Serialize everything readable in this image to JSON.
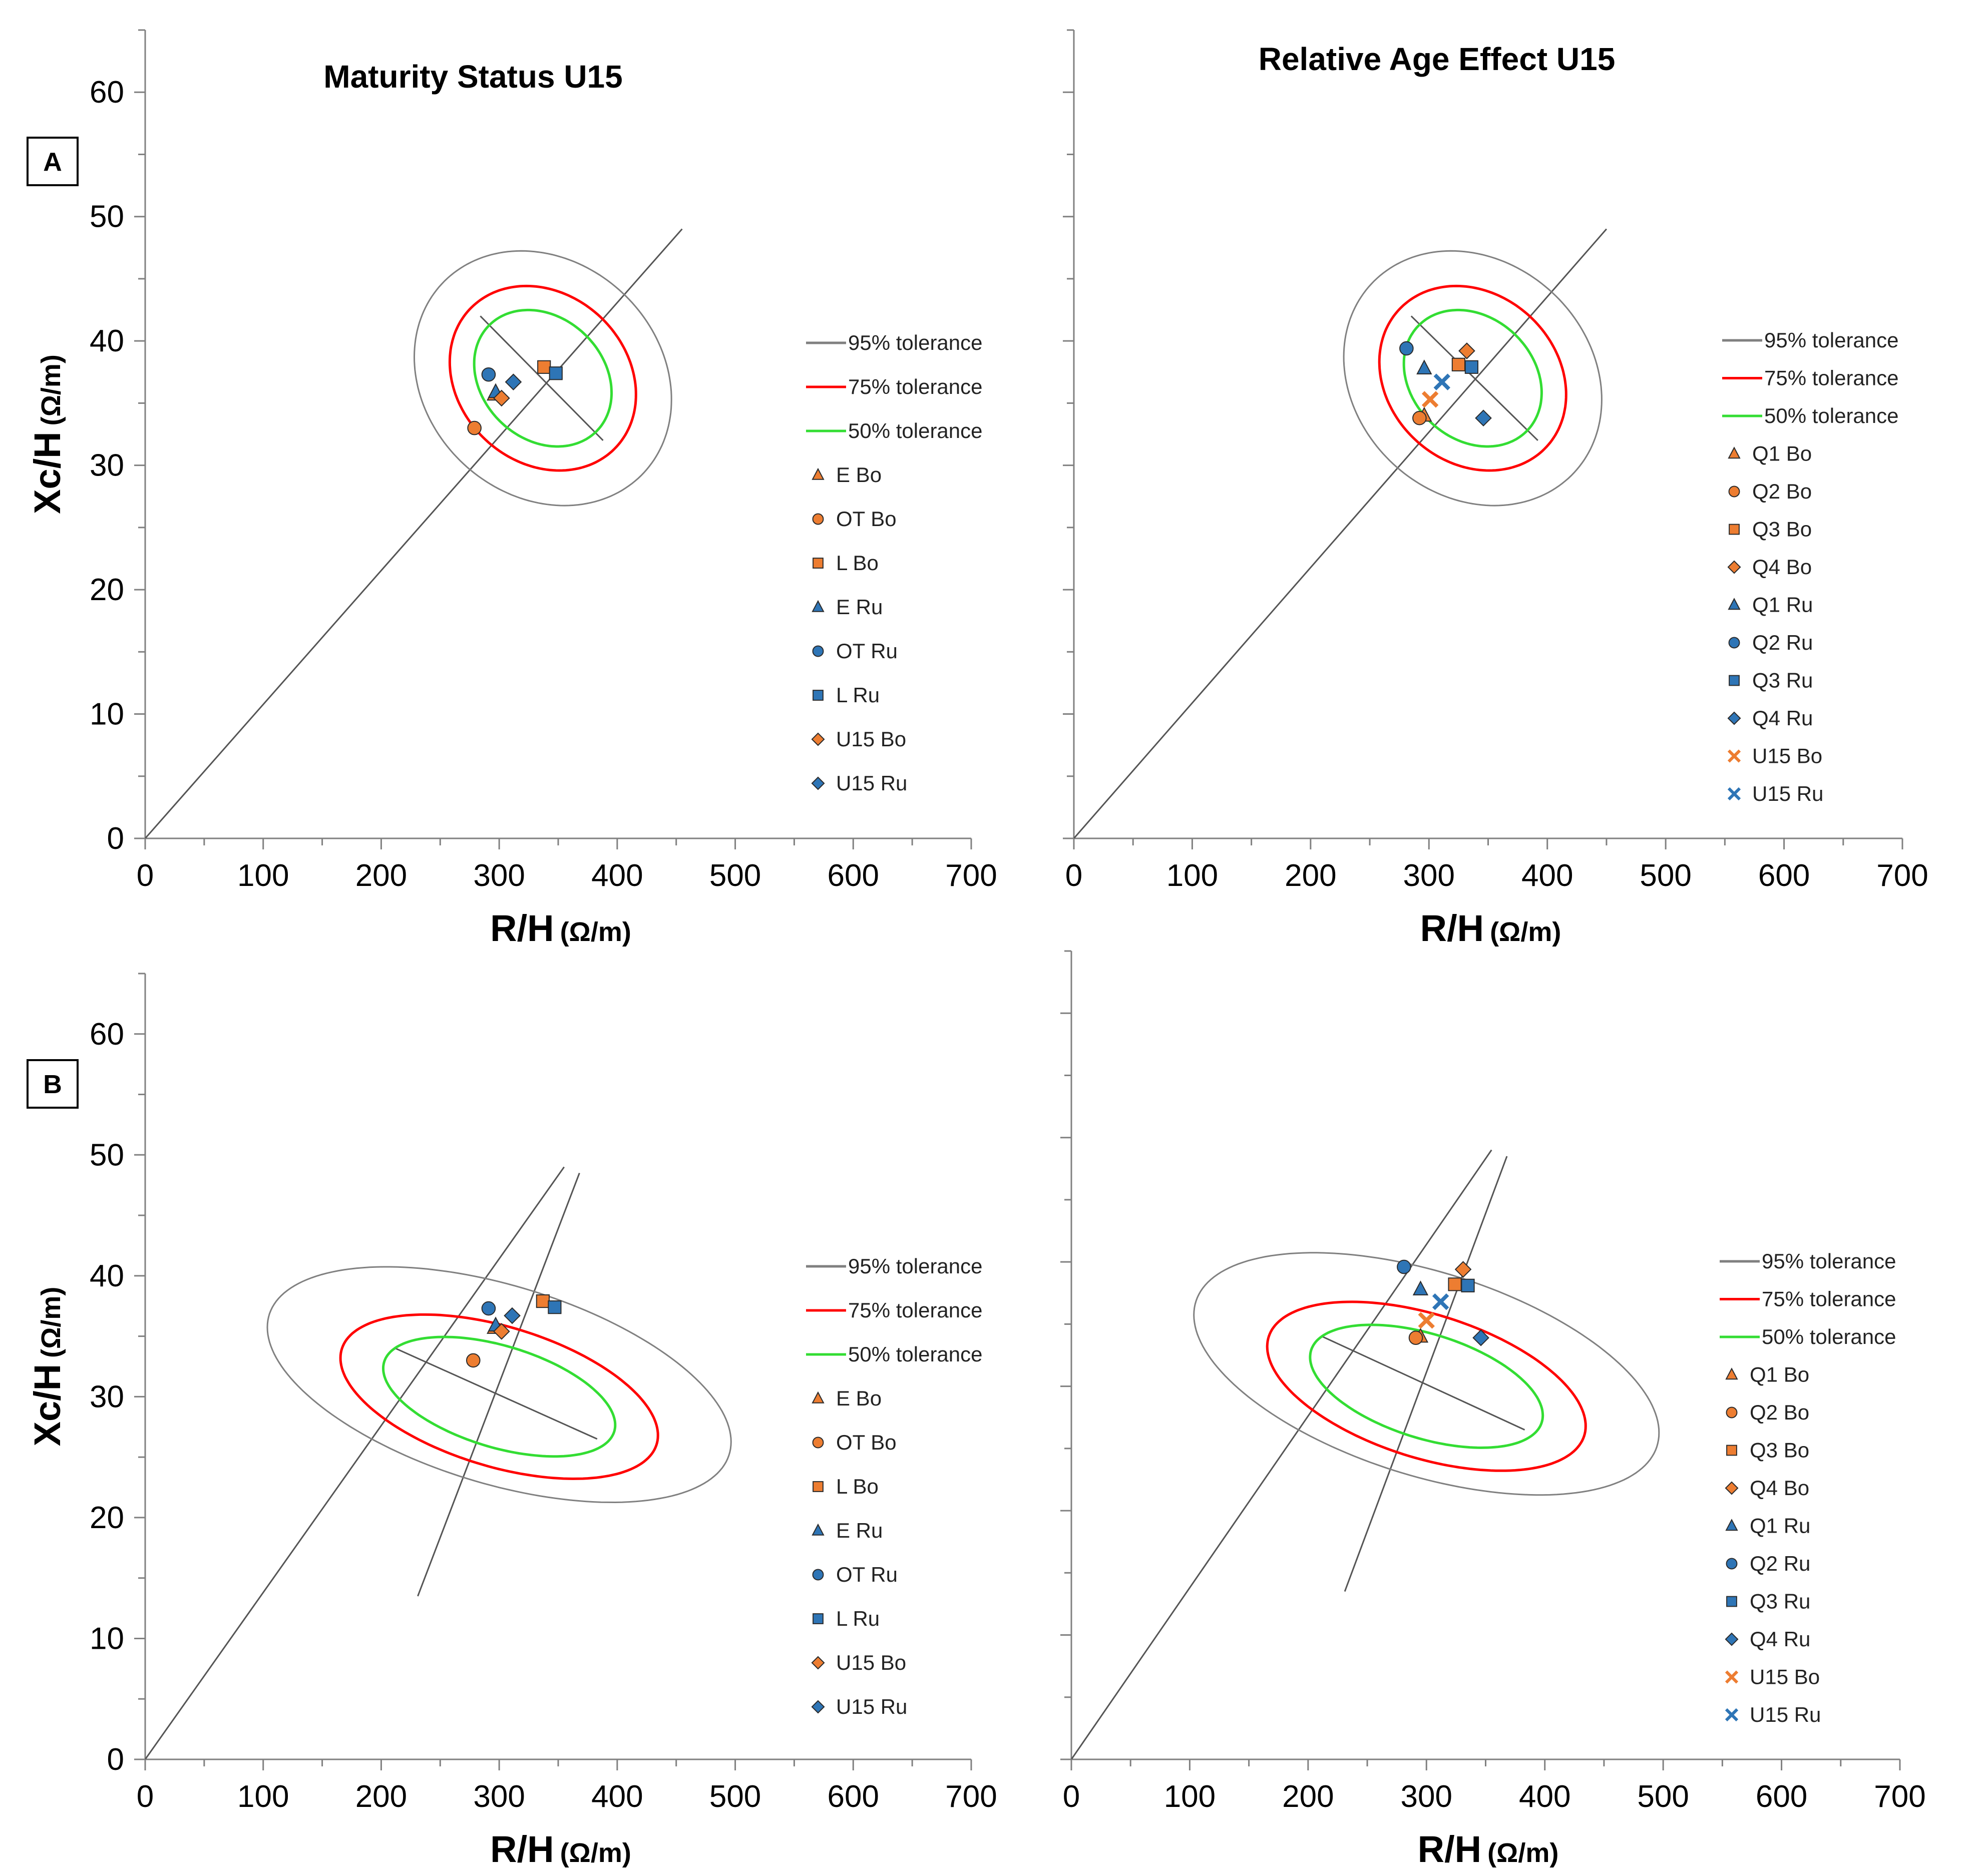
{
  "figure": {
    "row_labels": [
      "A",
      "B"
    ],
    "colors": {
      "bo": "#ED7D31",
      "ru": "#2E75B6",
      "c95": "#808080",
      "c75": "#FF0000",
      "c50": "#33DD33",
      "axis": "#808080"
    }
  },
  "chart_data": [
    {
      "type": "scatter",
      "id": "A-left",
      "title": "Maturity Status U15",
      "panel_label": "A",
      "xlabel": "R/H",
      "xunit": "(Ω/m)",
      "ylabel": "Xc/H",
      "yunit": "(Ω/m)",
      "xlim": [
        0,
        700
      ],
      "ylim": [
        0,
        65
      ],
      "xticks": [
        0,
        100,
        200,
        300,
        400,
        500,
        600,
        700
      ],
      "yticks": [
        0,
        10,
        20,
        30,
        40,
        50,
        60
      ],
      "ellipses": [
        {
          "label": "95% tolerance",
          "kind": "c95",
          "cx": 337,
          "cy": 37,
          "rx": 100,
          "ry": 11,
          "angle_deg": 43
        },
        {
          "label": "75% tolerance",
          "kind": "c75",
          "cx": 337,
          "cy": 37,
          "rx": 72,
          "ry": 8,
          "angle_deg": 43
        },
        {
          "label": "50% tolerance",
          "kind": "c50",
          "cx": 337,
          "cy": 37,
          "rx": 52,
          "ry": 6,
          "angle_deg": 43
        }
      ],
      "axes_lines": [
        {
          "from": [
            0,
            0
          ],
          "to": [
            455,
            49
          ]
        },
        {
          "from": [
            284,
            42
          ],
          "to": [
            388,
            32
          ]
        }
      ],
      "series": [
        {
          "name": "E Bo",
          "marker": "triangle",
          "group": "bo",
          "x": 296,
          "y": 35.7
        },
        {
          "name": "OT Bo",
          "marker": "circle",
          "group": "bo",
          "x": 279,
          "y": 33
        },
        {
          "name": "L Bo",
          "marker": "square",
          "group": "bo",
          "x": 338,
          "y": 37.9
        },
        {
          "name": "E Ru",
          "marker": "triangle",
          "group": "ru",
          "x": 297,
          "y": 35.9
        },
        {
          "name": "OT Ru",
          "marker": "circle",
          "group": "ru",
          "x": 291,
          "y": 37.3
        },
        {
          "name": "L Ru",
          "marker": "square",
          "group": "ru",
          "x": 348,
          "y": 37.4
        },
        {
          "name": "U15 Bo",
          "marker": "diamond",
          "group": "bo",
          "x": 302,
          "y": 35.4
        },
        {
          "name": "U15 Ru",
          "marker": "diamond",
          "group": "ru",
          "x": 312,
          "y": 36.7
        }
      ]
    },
    {
      "type": "scatter",
      "id": "A-right",
      "title": "Relative Age Effect U15",
      "panel_label": "",
      "xlabel": "R/H",
      "xunit": "(Ω/m)",
      "ylabel": "",
      "yunit": "",
      "xlim": [
        0,
        700
      ],
      "ylim": [
        0,
        65
      ],
      "xticks": [
        0,
        100,
        200,
        300,
        400,
        500,
        600,
        700
      ],
      "yticks": [],
      "ellipses": [
        {
          "label": "95% tolerance",
          "kind": "c95",
          "cx": 337,
          "cy": 37,
          "rx": 100,
          "ry": 11,
          "angle_deg": 43
        },
        {
          "label": "75% tolerance",
          "kind": "c75",
          "cx": 337,
          "cy": 37,
          "rx": 72,
          "ry": 8,
          "angle_deg": 43
        },
        {
          "label": "50% tolerance",
          "kind": "c50",
          "cx": 337,
          "cy": 37,
          "rx": 52,
          "ry": 6,
          "angle_deg": 43
        }
      ],
      "axes_lines": [
        {
          "from": [
            0,
            0
          ],
          "to": [
            450,
            49
          ]
        },
        {
          "from": [
            285,
            42
          ],
          "to": [
            392,
            32
          ]
        }
      ],
      "series": [
        {
          "name": "Q1 Bo",
          "marker": "triangle",
          "group": "bo",
          "x": 296,
          "y": 34
        },
        {
          "name": "Q2 Bo",
          "marker": "circle",
          "group": "bo",
          "x": 292,
          "y": 33.8
        },
        {
          "name": "Q3 Bo",
          "marker": "square",
          "group": "bo",
          "x": 325,
          "y": 38.1
        },
        {
          "name": "Q4 Bo",
          "marker": "diamond",
          "group": "bo",
          "x": 332,
          "y": 39.2
        },
        {
          "name": "Q1 Ru",
          "marker": "triangle",
          "group": "ru",
          "x": 296,
          "y": 37.8
        },
        {
          "name": "Q2 Ru",
          "marker": "circle",
          "group": "ru",
          "x": 281,
          "y": 39.4
        },
        {
          "name": "Q3 Ru",
          "marker": "square",
          "group": "ru",
          "x": 336,
          "y": 37.9
        },
        {
          "name": "Q4 Ru",
          "marker": "diamond",
          "group": "ru",
          "x": 346,
          "y": 33.8
        },
        {
          "name": "U15 Bo",
          "marker": "x",
          "group": "bo",
          "x": 301,
          "y": 35.3
        },
        {
          "name": "U15 Ru",
          "marker": "x",
          "group": "ru",
          "x": 311,
          "y": 36.7
        }
      ]
    },
    {
      "type": "scatter",
      "id": "B-left",
      "title": "",
      "panel_label": "B",
      "xlabel": "R/H",
      "xunit": "(Ω/m)",
      "ylabel": "Xc/H",
      "yunit": "(Ω/m)",
      "xlim": [
        0,
        700
      ],
      "ylim": [
        0,
        65
      ],
      "xticks": [
        0,
        100,
        200,
        300,
        400,
        500,
        600,
        700
      ],
      "yticks": [
        0,
        10,
        20,
        30,
        40,
        50,
        60
      ],
      "ellipses": [
        {
          "label": "95% tolerance",
          "kind": "c95",
          "cx": 300,
          "cy": 31,
          "rx": 88,
          "ry": 19,
          "angle_deg": 72
        },
        {
          "label": "75% tolerance",
          "kind": "c75",
          "cx": 300,
          "cy": 30,
          "rx": 62,
          "ry": 13,
          "angle_deg": 72
        },
        {
          "label": "50% tolerance",
          "kind": "c50",
          "cx": 300,
          "cy": 30,
          "rx": 45,
          "ry": 9.5,
          "angle_deg": 72
        }
      ],
      "axes_lines": [
        {
          "from": [
            0,
            0
          ],
          "to": [
            355,
            49
          ]
        },
        {
          "from": [
            231,
            13.5
          ],
          "to": [
            368,
            48.5
          ]
        },
        {
          "from": [
            212,
            34
          ],
          "to": [
            383,
            26.5
          ]
        }
      ],
      "series": [
        {
          "name": "E Bo",
          "marker": "triangle",
          "group": "bo",
          "x": 296,
          "y": 35.7
        },
        {
          "name": "OT Bo",
          "marker": "circle",
          "group": "bo",
          "x": 278,
          "y": 33
        },
        {
          "name": "L Bo",
          "marker": "square",
          "group": "bo",
          "x": 337,
          "y": 37.9
        },
        {
          "name": "E Ru",
          "marker": "triangle",
          "group": "ru",
          "x": 297,
          "y": 35.9
        },
        {
          "name": "OT Ru",
          "marker": "circle",
          "group": "ru",
          "x": 291,
          "y": 37.3
        },
        {
          "name": "L Ru",
          "marker": "square",
          "group": "ru",
          "x": 347,
          "y": 37.4
        },
        {
          "name": "U15 Bo",
          "marker": "diamond",
          "group": "bo",
          "x": 302,
          "y": 35.4
        },
        {
          "name": "U15 Ru",
          "marker": "diamond",
          "group": "ru",
          "x": 311,
          "y": 36.7
        }
      ]
    },
    {
      "type": "scatter",
      "id": "B-right",
      "title": "",
      "panel_label": "",
      "xlabel": "R/H",
      "xunit": "(Ω/m)",
      "ylabel": "",
      "yunit": "",
      "xlim": [
        0,
        700
      ],
      "ylim": [
        0,
        65
      ],
      "xticks": [
        0,
        100,
        200,
        300,
        400,
        500,
        600,
        700
      ],
      "yticks": [],
      "ellipses": [
        {
          "label": "95% tolerance",
          "kind": "c95",
          "cx": 300,
          "cy": 31,
          "rx": 88,
          "ry": 19,
          "angle_deg": 72
        },
        {
          "label": "75% tolerance",
          "kind": "c75",
          "cx": 300,
          "cy": 30,
          "rx": 62,
          "ry": 13,
          "angle_deg": 72
        },
        {
          "label": "50% tolerance",
          "kind": "c50",
          "cx": 300,
          "cy": 30,
          "rx": 45,
          "ry": 9.5,
          "angle_deg": 72
        }
      ],
      "axes_lines": [
        {
          "from": [
            0,
            0
          ],
          "to": [
            355,
            49
          ]
        },
        {
          "from": [
            231,
            13.5
          ],
          "to": [
            368,
            48.5
          ]
        },
        {
          "from": [
            212,
            34
          ],
          "to": [
            383,
            26.5
          ]
        }
      ],
      "series": [
        {
          "name": "Q1 Bo",
          "marker": "triangle",
          "group": "bo",
          "x": 295,
          "y": 34
        },
        {
          "name": "Q2 Bo",
          "marker": "circle",
          "group": "bo",
          "x": 291,
          "y": 33.9
        },
        {
          "name": "Q3 Bo",
          "marker": "square",
          "group": "bo",
          "x": 324,
          "y": 38.2
        },
        {
          "name": "Q4 Bo",
          "marker": "diamond",
          "group": "bo",
          "x": 331,
          "y": 39.4
        },
        {
          "name": "Q1 Ru",
          "marker": "triangle",
          "group": "ru",
          "x": 295,
          "y": 37.8
        },
        {
          "name": "Q2 Ru",
          "marker": "circle",
          "group": "ru",
          "x": 281,
          "y": 39.6
        },
        {
          "name": "Q3 Ru",
          "marker": "square",
          "group": "ru",
          "x": 335,
          "y": 38.1
        },
        {
          "name": "Q4 Ru",
          "marker": "diamond",
          "group": "ru",
          "x": 346,
          "y": 33.9
        },
        {
          "name": "U15 Bo",
          "marker": "x",
          "group": "bo",
          "x": 300,
          "y": 35.3
        },
        {
          "name": "U15 Ru",
          "marker": "x",
          "group": "ru",
          "x": 312,
          "y": 36.8
        }
      ]
    }
  ]
}
